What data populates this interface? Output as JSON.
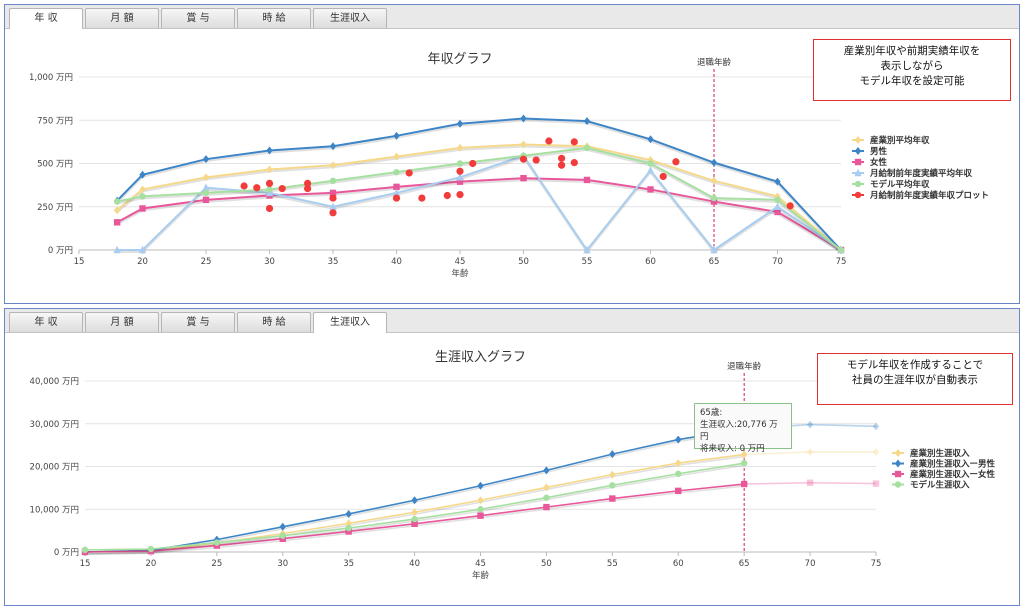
{
  "tabs": [
    "年 収",
    "月 額",
    "賞 与",
    "時 給",
    "生涯収入"
  ],
  "callouts": {
    "top": [
      "産業別年収や前期実績年収を",
      "表示しながら",
      "モデル年収を設定可能"
    ],
    "bottom": [
      "モデル年収を作成することで",
      "社員の生涯年収が自動表示"
    ]
  },
  "tooltip": {
    "title": "65歳:",
    "line1": "生涯収入:20,776 万円",
    "line2": "将来収入: 0 万円"
  },
  "colors": {
    "industry": "#f5d88a",
    "male": "#3d85c6",
    "female": "#e8579a",
    "prev_avg": "#a8cdf0",
    "model": "#a6e0a0",
    "plot": "#f23b3b",
    "retire": "#d81b60"
  },
  "chart_data": [
    {
      "type": "line",
      "title": "年収グラフ",
      "xlabel": "年齢",
      "ylabel": "",
      "xlim": [
        15,
        75
      ],
      "ylim": [
        0,
        1000
      ],
      "xticks": [
        15,
        20,
        25,
        30,
        35,
        40,
        45,
        50,
        55,
        60,
        65,
        70,
        75
      ],
      "yticks": [
        0,
        250,
        500,
        750,
        1000
      ],
      "ytick_labels": [
        "0 万円",
        "250 万円",
        "500 万円",
        "750 万円",
        "1,000 万円"
      ],
      "retire_line": {
        "x": 65,
        "label": "退職年齢"
      },
      "legend_position": "right",
      "series": [
        {
          "name": "産業別平均年収",
          "key": "industry",
          "marker": "diamond",
          "x": [
            18,
            20,
            25,
            30,
            35,
            40,
            45,
            50,
            55,
            60,
            65,
            70,
            75
          ],
          "y": [
            230,
            350,
            420,
            465,
            490,
            540,
            590,
            610,
            600,
            520,
            400,
            310,
            0
          ]
        },
        {
          "name": "男性",
          "key": "male",
          "marker": "diamond",
          "x": [
            18,
            20,
            25,
            30,
            35,
            40,
            45,
            50,
            55,
            60,
            65,
            70,
            75
          ],
          "y": [
            285,
            435,
            525,
            575,
            600,
            660,
            730,
            760,
            745,
            640,
            505,
            395,
            0
          ]
        },
        {
          "name": "女性",
          "key": "female",
          "marker": "square",
          "x": [
            18,
            20,
            25,
            30,
            35,
            40,
            45,
            50,
            55,
            60,
            65,
            70,
            75
          ],
          "y": [
            160,
            240,
            290,
            315,
            330,
            365,
            395,
            415,
            405,
            350,
            280,
            220,
            0
          ]
        },
        {
          "name": "月給制前年度実績平均年収",
          "key": "prev_avg",
          "marker": "triangle",
          "x": [
            18,
            20,
            25,
            30,
            35,
            40,
            45,
            50,
            55,
            60,
            65,
            70,
            75
          ],
          "y": [
            0,
            0,
            360,
            330,
            250,
            330,
            420,
            545,
            0,
            460,
            0,
            250,
            0
          ]
        },
        {
          "name": "モデル平均年収",
          "key": "model",
          "marker": "circle",
          "x": [
            18,
            20,
            25,
            30,
            35,
            40,
            45,
            50,
            55,
            60,
            65,
            70,
            75
          ],
          "y": [
            280,
            310,
            330,
            350,
            400,
            450,
            500,
            545,
            590,
            500,
            300,
            290,
            0
          ]
        }
      ],
      "scatter": {
        "name": "月給制前年度実績年収プロット",
        "key": "plot",
        "points": [
          [
            28,
            370
          ],
          [
            29,
            360
          ],
          [
            30,
            385
          ],
          [
            31,
            355
          ],
          [
            33,
            385
          ],
          [
            33,
            355
          ],
          [
            35,
            300
          ],
          [
            35,
            215
          ],
          [
            30,
            240
          ],
          [
            40,
            300
          ],
          [
            41,
            445
          ],
          [
            42,
            300
          ],
          [
            44,
            315
          ],
          [
            45,
            320
          ],
          [
            45,
            455
          ],
          [
            46,
            500
          ],
          [
            50,
            525
          ],
          [
            51,
            520
          ],
          [
            52,
            630
          ],
          [
            53,
            530
          ],
          [
            53,
            490
          ],
          [
            54,
            625
          ],
          [
            54,
            505
          ],
          [
            61,
            425
          ],
          [
            62,
            510
          ],
          [
            71,
            255
          ]
        ]
      }
    },
    {
      "type": "line",
      "title": "生涯収入グラフ",
      "xlabel": "年齢",
      "ylabel": "",
      "xlim": [
        15,
        75
      ],
      "ylim": [
        0,
        40000
      ],
      "xticks": [
        15,
        20,
        25,
        30,
        35,
        40,
        45,
        50,
        55,
        60,
        65,
        70,
        75
      ],
      "yticks": [
        0,
        10000,
        20000,
        30000,
        40000
      ],
      "ytick_labels": [
        "0 万円",
        "10,000 万円",
        "20,000 万円",
        "30,000 万円",
        "40,000 万円"
      ],
      "retire_line": {
        "x": 65,
        "label": "退職年齢"
      },
      "legend_position": "right",
      "series": [
        {
          "name": "産業別生涯収入",
          "key": "industry",
          "marker": "diamond",
          "faded_after": 65,
          "x": [
            15,
            20,
            25,
            30,
            35,
            40,
            45,
            50,
            55,
            60,
            65,
            70,
            75
          ],
          "y": [
            0,
            200,
            2100,
            4300,
            6700,
            9300,
            12100,
            15100,
            18100,
            20800,
            22800,
            23400,
            23400
          ]
        },
        {
          "name": "産業別生涯収入ー男性",
          "key": "male",
          "marker": "diamond",
          "faded_after": 65,
          "x": [
            15,
            20,
            25,
            30,
            35,
            40,
            45,
            50,
            55,
            60,
            65,
            70,
            75
          ],
          "y": [
            0,
            400,
            2900,
            5900,
            8900,
            12100,
            15500,
            19100,
            22900,
            26300,
            28800,
            29800,
            29400
          ]
        },
        {
          "name": "産業別生涯収入ー女性",
          "key": "female",
          "marker": "square",
          "faded_after": 65,
          "x": [
            15,
            20,
            25,
            30,
            35,
            40,
            45,
            50,
            55,
            60,
            65,
            70,
            75
          ],
          "y": [
            0,
            200,
            1500,
            3100,
            4800,
            6600,
            8500,
            10500,
            12500,
            14300,
            15900,
            16200,
            16000
          ]
        },
        {
          "name": "モデル生涯収入",
          "key": "model",
          "marker": "circle",
          "x": [
            15,
            20,
            25,
            30,
            35,
            40,
            45,
            50,
            55,
            60,
            65
          ],
          "y": [
            500,
            700,
            2200,
            3800,
            5600,
            7700,
            10000,
            12700,
            15600,
            18300,
            20776
          ]
        }
      ]
    }
  ]
}
